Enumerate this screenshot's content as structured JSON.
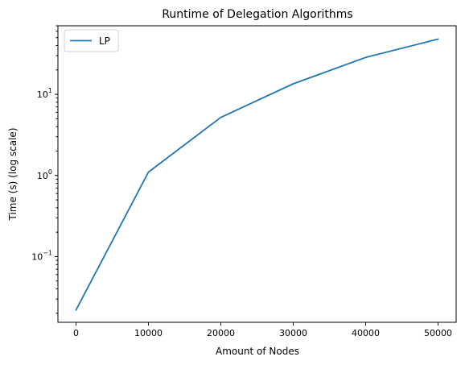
{
  "chart_data": {
    "type": "line",
    "title": "Runtime of Delegation Algorithms",
    "xlabel": "Amount of Nodes",
    "ylabel": "Time (s) (log scale)",
    "x": [
      0,
      10000,
      20000,
      30000,
      40000,
      50000
    ],
    "series": [
      {
        "name": "LP",
        "values": [
          0.022,
          1.1,
          5.2,
          13.5,
          28.5,
          48.0
        ],
        "color": "#1f77b4"
      }
    ],
    "x_ticks": [
      "0",
      "10000",
      "20000",
      "30000",
      "40000",
      "50000"
    ],
    "x_tick_values": [
      0,
      10000,
      20000,
      30000,
      40000,
      50000
    ],
    "y_ticks": [
      {
        "base": "10",
        "exp": "−1",
        "value": 0.1
      },
      {
        "base": "10",
        "exp": "0",
        "value": 1
      },
      {
        "base": "10",
        "exp": "1",
        "value": 10
      }
    ],
    "xlim": [
      -2500,
      52500
    ],
    "ylim": [
      0.0155,
      70
    ],
    "yscale": "log",
    "grid": false,
    "legend_position": "top-left"
  }
}
